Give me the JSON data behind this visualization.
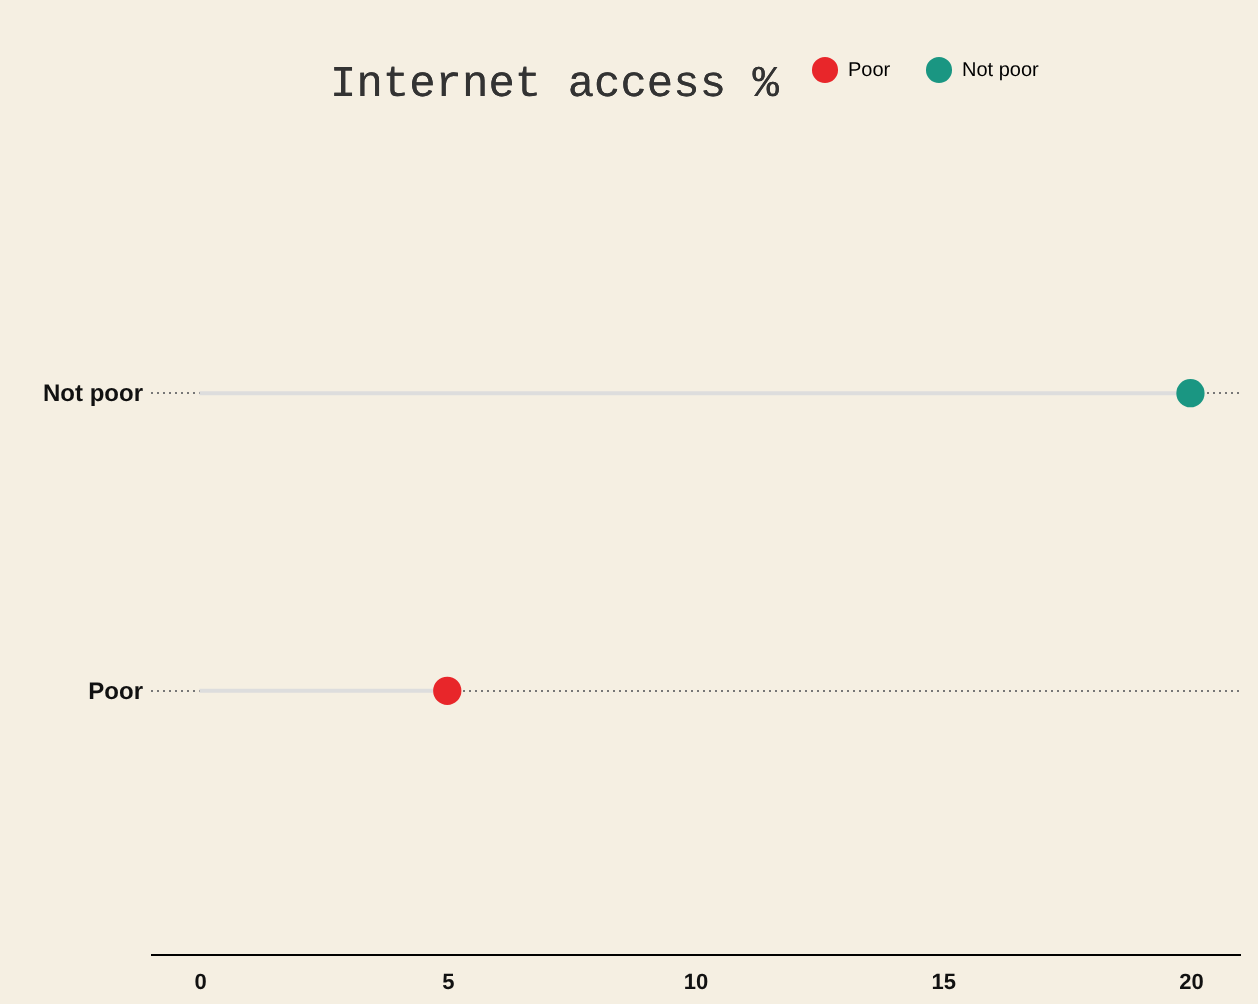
{
  "chart_data": {
    "type": "lollipop",
    "title": "Internet access %",
    "orientation": "horizontal",
    "categories": [
      "Not poor",
      "Poor"
    ],
    "series": [
      {
        "name": "Poor",
        "color": "#e8262a",
        "values": [
          null,
          5
        ]
      },
      {
        "name": "Not poor",
        "color": "#1a9682",
        "values": [
          20,
          null
        ]
      }
    ],
    "xlim": [
      -1,
      21
    ],
    "xticks": [
      0,
      5,
      10,
      15,
      20
    ],
    "grid": "y",
    "legend": "top right",
    "marker": "circle"
  }
}
